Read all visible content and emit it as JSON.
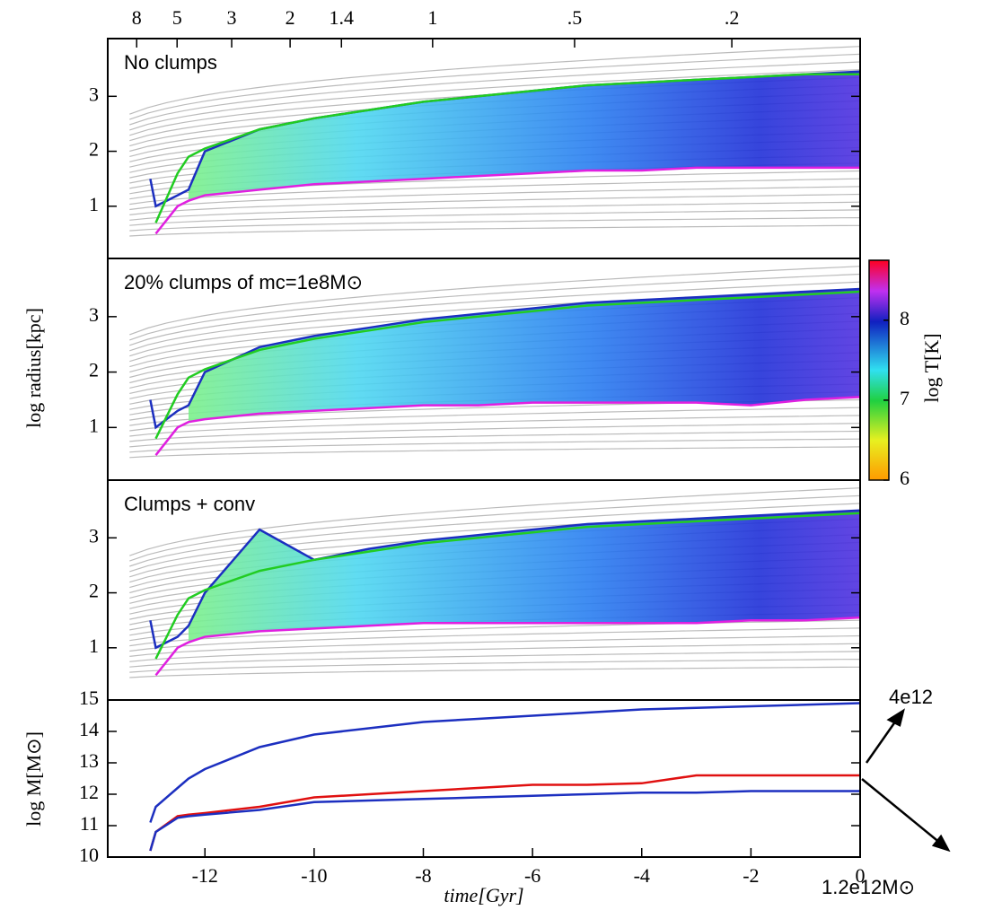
{
  "chart_data": [
    {
      "type": "line",
      "title": "No clumps",
      "x": [
        -13.0,
        -12.9,
        -12.5,
        -12.3,
        -12,
        -11,
        -10,
        -9,
        -8,
        -7,
        -6,
        -5,
        -4,
        -3,
        -2,
        -1,
        0
      ],
      "xlim": [
        -13.78,
        0
      ],
      "ylim": [
        0.05,
        4.05
      ],
      "yticks": [
        1,
        2,
        3
      ],
      "x2ticks": [
        {
          "value": -13.25,
          "label": "8"
        },
        {
          "value": -12.51,
          "label": "5"
        },
        {
          "value": -11.51,
          "label": "3"
        },
        {
          "value": -10.44,
          "label": "2"
        },
        {
          "value": -9.5,
          "label": "1.4"
        },
        {
          "value": -7.83,
          "label": "1"
        },
        {
          "value": -5.23,
          "label": ".5"
        },
        {
          "value": -2.35,
          "label": ".2"
        }
      ],
      "series": [
        {
          "color": "#1c2fc0",
          "values": [
            1.5,
            1.0,
            1.2,
            1.3,
            2.0,
            2.4,
            2.6,
            2.75,
            2.9,
            3.0,
            3.1,
            3.2,
            3.25,
            3.3,
            3.35,
            3.4,
            3.45
          ]
        },
        {
          "color": "#22cc22",
          "values": [
            null,
            0.7,
            1.6,
            1.9,
            2.05,
            2.4,
            2.6,
            2.75,
            2.9,
            3.0,
            3.1,
            3.2,
            3.25,
            3.3,
            3.35,
            3.4,
            3.4
          ]
        },
        {
          "color": "#e020e0",
          "values": [
            null,
            0.5,
            1.0,
            1.1,
            1.2,
            1.3,
            1.4,
            1.45,
            1.5,
            1.55,
            1.6,
            1.65,
            1.65,
            1.7,
            1.7,
            1.7,
            1.7
          ]
        }
      ]
    },
    {
      "type": "line",
      "title": "20% clumps of mc=1e8M⊙",
      "ylabel": "log radius[kpc]",
      "x": [
        -13.0,
        -12.9,
        -12.5,
        -12.3,
        -12,
        -11,
        -10,
        -9,
        -8,
        -7,
        -6,
        -5,
        -4,
        -3,
        -2,
        -1,
        0
      ],
      "xlim": [
        -13.78,
        0
      ],
      "ylim": [
        0.05,
        4.05
      ],
      "yticks": [
        1,
        2,
        3
      ],
      "series": [
        {
          "color": "#1c2fc0",
          "values": [
            1.5,
            1.0,
            1.3,
            1.4,
            2.0,
            2.45,
            2.65,
            2.8,
            2.95,
            3.05,
            3.15,
            3.25,
            3.3,
            3.35,
            3.4,
            3.45,
            3.5
          ]
        },
        {
          "color": "#22cc22",
          "values": [
            null,
            0.8,
            1.6,
            1.9,
            2.05,
            2.4,
            2.6,
            2.75,
            2.9,
            3.0,
            3.1,
            3.2,
            3.25,
            3.3,
            3.35,
            3.4,
            3.45
          ]
        },
        {
          "color": "#e020e0",
          "values": [
            null,
            0.5,
            1.0,
            1.1,
            1.15,
            1.25,
            1.3,
            1.35,
            1.4,
            1.4,
            1.45,
            1.45,
            1.45,
            1.45,
            1.4,
            1.5,
            1.55
          ]
        }
      ]
    },
    {
      "type": "line",
      "title": "Clumps + conv",
      "x": [
        -13.0,
        -12.9,
        -12.5,
        -12.3,
        -12,
        -11,
        -10,
        -9,
        -8,
        -7,
        -6,
        -5,
        -4,
        -3,
        -2,
        -1,
        0
      ],
      "xlim": [
        -13.78,
        0
      ],
      "ylim": [
        0.05,
        4.05
      ],
      "yticks": [
        1,
        2,
        3
      ],
      "series": [
        {
          "color": "#1c2fc0",
          "values": [
            1.5,
            1.0,
            1.2,
            1.4,
            2.0,
            3.15,
            2.6,
            2.8,
            2.95,
            3.05,
            3.15,
            3.25,
            3.3,
            3.35,
            3.4,
            3.45,
            3.5
          ]
        },
        {
          "color": "#22cc22",
          "values": [
            null,
            0.8,
            1.6,
            1.9,
            2.05,
            2.4,
            2.6,
            2.75,
            2.9,
            3.0,
            3.1,
            3.2,
            3.25,
            3.3,
            3.35,
            3.4,
            3.45
          ]
        },
        {
          "color": "#e020e0",
          "values": [
            null,
            0.5,
            1.0,
            1.1,
            1.2,
            1.3,
            1.35,
            1.4,
            1.45,
            1.45,
            1.45,
            1.45,
            1.45,
            1.45,
            1.5,
            1.5,
            1.55
          ]
        }
      ]
    },
    {
      "type": "line",
      "xlabel": "time[Gyr]",
      "ylabel": "log M[M⊙]",
      "x": [
        -13.0,
        -12.9,
        -12.5,
        -12.3,
        -12,
        -11,
        -10,
        -9,
        -8,
        -7,
        -6,
        -5,
        -4,
        -3,
        -2,
        -1,
        0
      ],
      "xlim": [
        -13.78,
        0
      ],
      "ylim": [
        10,
        15
      ],
      "yticks": [
        10,
        11,
        12,
        13,
        14,
        15
      ],
      "xticks": [
        -12,
        -10,
        -8,
        -6,
        -4,
        -2,
        0
      ],
      "annotations": [
        "4e12",
        "1.2e12M⊙"
      ],
      "series": [
        {
          "color": "#1c2fc0",
          "values": [
            11.1,
            11.6,
            12.2,
            12.5,
            12.8,
            13.5,
            13.9,
            14.1,
            14.3,
            14.4,
            14.5,
            14.6,
            14.7,
            14.75,
            14.8,
            14.85,
            14.9
          ]
        },
        {
          "color": "#e01010",
          "values": [
            10.2,
            10.8,
            11.3,
            11.35,
            11.4,
            11.6,
            11.9,
            12.0,
            12.1,
            12.2,
            12.3,
            12.3,
            12.35,
            12.6,
            12.6,
            12.6,
            12.6
          ]
        },
        {
          "color": "#1c2fc0",
          "values": [
            10.2,
            10.8,
            11.25,
            11.3,
            11.35,
            11.5,
            11.75,
            11.8,
            11.85,
            11.9,
            11.95,
            12.0,
            12.05,
            12.05,
            12.1,
            12.1,
            12.1
          ]
        }
      ]
    },
    {
      "type": "colorbar",
      "label": "log T[K]",
      "ylim": [
        6,
        8.75
      ],
      "yticks": [
        6,
        7,
        8
      ]
    }
  ]
}
